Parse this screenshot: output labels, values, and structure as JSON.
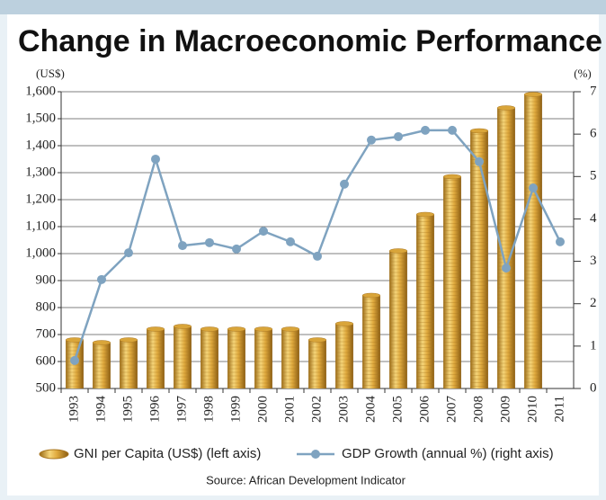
{
  "chart_data": {
    "type": "bar-line",
    "title": "Change in Macroeconomic Performance",
    "y_unit": "(US$)",
    "y2_unit": "(%)",
    "source": "Source: African Development Indicator",
    "categories": [
      "1993",
      "1994",
      "1995",
      "1996",
      "1997",
      "1998",
      "1999",
      "2000",
      "2001",
      "2002",
      "2003",
      "2004",
      "2005",
      "2006",
      "2007",
      "2008",
      "2009",
      "2010",
      "2011"
    ],
    "series": [
      {
        "name": "GNI per Capita (US$) (left axis)",
        "color": "#d9a53a",
        "type": "bar",
        "values": [
          680,
          670,
          680,
          720,
          730,
          720,
          720,
          720,
          720,
          680,
          740,
          845,
          1010,
          1145,
          1285,
          1455,
          1540,
          1590,
          null
        ]
      },
      {
        "name": "GDP Growth (annual %) (right axis)",
        "color": "#7fa3c0",
        "type": "line",
        "axis": "y2",
        "values": [
          0.66,
          2.57,
          3.2,
          5.41,
          3.37,
          3.44,
          3.29,
          3.71,
          3.46,
          3.12,
          4.82,
          5.86,
          5.94,
          6.09,
          6.09,
          5.35,
          2.84,
          4.73,
          3.46
        ]
      }
    ],
    "ylim": [
      500,
      1600
    ],
    "yticks": [
      500,
      600,
      700,
      800,
      900,
      {
        "value": 1000,
        "label": "1,000"
      },
      {
        "value": 1100,
        "label": "1,100"
      },
      {
        "value": 1200,
        "label": "1,200"
      },
      {
        "value": 1300,
        "label": "1,300"
      },
      {
        "value": 1400,
        "label": "1,400"
      },
      {
        "value": 1500,
        "label": "1,500"
      },
      {
        "value": 1600,
        "label": "1,600"
      }
    ],
    "y2lim": [
      0,
      7
    ],
    "y2ticks": [
      0,
      1,
      2,
      3,
      4,
      5,
      6,
      7
    ],
    "grid": true
  }
}
